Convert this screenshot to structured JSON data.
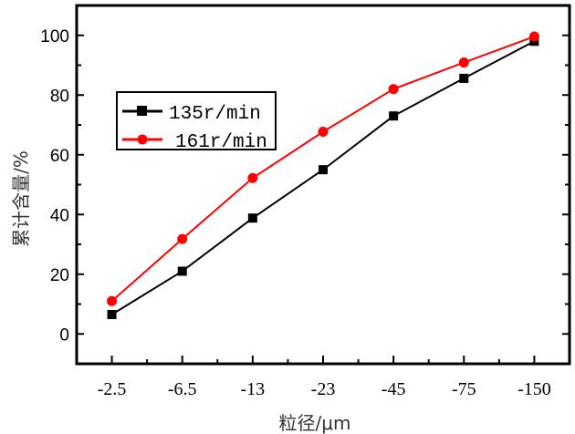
{
  "chart_data": {
    "type": "line",
    "title": "",
    "xlabel": "粒径/μm",
    "ylabel": "累计含量/%",
    "categories": [
      "-2.5",
      "-6.5",
      "-13",
      "-23",
      "-45",
      "-75",
      "-150"
    ],
    "ylim": [
      -10,
      110
    ],
    "yticks": [
      0,
      20,
      40,
      60,
      80,
      100
    ],
    "grid": false,
    "legend_position": "upper-left",
    "series": [
      {
        "name": "135r/min",
        "color": "#000000",
        "marker": "square",
        "values": [
          6.5,
          21,
          38.8,
          55,
          73,
          85.6,
          98
        ]
      },
      {
        "name": "161r/min",
        "color": "#ff0000",
        "marker": "circle",
        "values": [
          11,
          31.8,
          52.2,
          67.7,
          82,
          90.9,
          99.6
        ]
      }
    ]
  }
}
